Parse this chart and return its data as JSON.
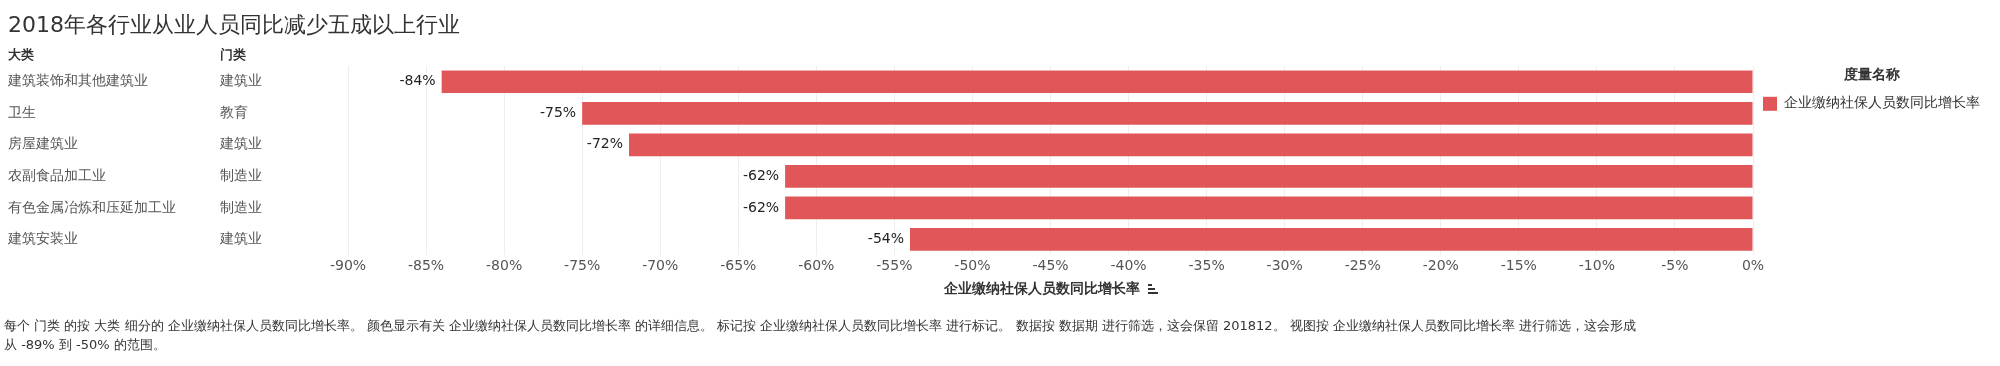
{
  "chart_data": {
    "type": "bar",
    "orientation": "horizontal",
    "title": "2018年各行业从业人员同比减少五成以上行业",
    "ylabel": "大类",
    "y2label": "门类",
    "categories": [
      "建筑装饰和其他建筑业",
      "卫生",
      "房屋建筑业",
      "农副食品加工业",
      "有色金属冶炼和压延加工业",
      "建筑安装业"
    ],
    "y2_categories": [
      "建筑业",
      "教育",
      "建筑业",
      "制造业",
      "制造业",
      "建筑业"
    ],
    "series": [
      {
        "name": "企业缴纳社保人员数同比增长率",
        "color": "#e15759",
        "values": [
          -84,
          -75,
          -72,
          -62,
          -62,
          -54
        ],
        "value_labels": [
          "-84%",
          "-75%",
          "-72%",
          "-62%",
          "-62%",
          "-54%"
        ]
      }
    ],
    "xlabel": "企业缴纳社保人员数同比增长率",
    "legend_title": "度量名称",
    "legend": "right",
    "xlim": [
      -90,
      0
    ],
    "xticks": [
      {
        "value": -90,
        "label": "-90%"
      },
      {
        "value": -85,
        "label": "-85%"
      },
      {
        "value": -80,
        "label": "-80%"
      },
      {
        "value": -75,
        "label": "-75%"
      },
      {
        "value": -70,
        "label": "-70%"
      },
      {
        "value": -65,
        "label": "-65%"
      },
      {
        "value": -60,
        "label": "-60%"
      },
      {
        "value": -55,
        "label": "-55%"
      },
      {
        "value": -50,
        "label": "-50%"
      },
      {
        "value": -45,
        "label": "-45%"
      },
      {
        "value": -40,
        "label": "-40%"
      },
      {
        "value": -35,
        "label": "-35%"
      },
      {
        "value": -30,
        "label": "-30%"
      },
      {
        "value": -25,
        "label": "-25%"
      },
      {
        "value": -20,
        "label": "-20%"
      },
      {
        "value": -15,
        "label": "-15%"
      },
      {
        "value": -10,
        "label": "-10%"
      },
      {
        "value": -5,
        "label": "-5%"
      },
      {
        "value": 0,
        "label": "0%"
      }
    ],
    "grid": "x",
    "annotations": [
      "每个 门类 的按 大类 细分的 企业缴纳社保人员数同比增长率。 颜色显示有关 企业缴纳社保人员数同比增长率 的详细信息。 标记按 企业缴纳社保人员数同比增长率 进行标记。 数据按 数据期 进行筛选，这会保留 201812。 视图按 企业缴纳社保人员数同比增长率 进行筛选，这会形成从 -89% 到 -50% 的范围。"
    ]
  }
}
